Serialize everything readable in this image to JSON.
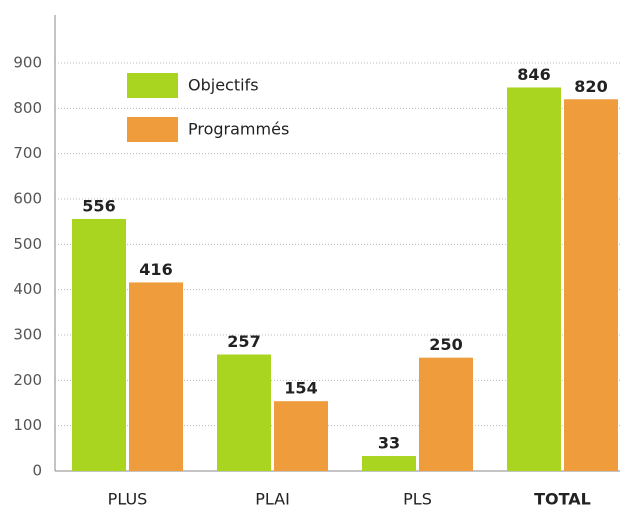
{
  "chart_data": {
    "type": "bar",
    "categories": [
      "PLUS",
      "PLAI",
      "PLS",
      "TOTAL"
    ],
    "series": [
      {
        "name": "Objectifs",
        "color": "#a9d41f",
        "values": [
          556,
          257,
          33,
          846
        ]
      },
      {
        "name": "Programmés",
        "color": "#ef9d3c",
        "values": [
          416,
          154,
          250,
          820
        ]
      }
    ],
    "ylim": [
      0,
      900
    ],
    "yticks": [
      0,
      100,
      200,
      300,
      400,
      500,
      600,
      700,
      800,
      900
    ],
    "grid": true,
    "legend": "upper-left"
  }
}
